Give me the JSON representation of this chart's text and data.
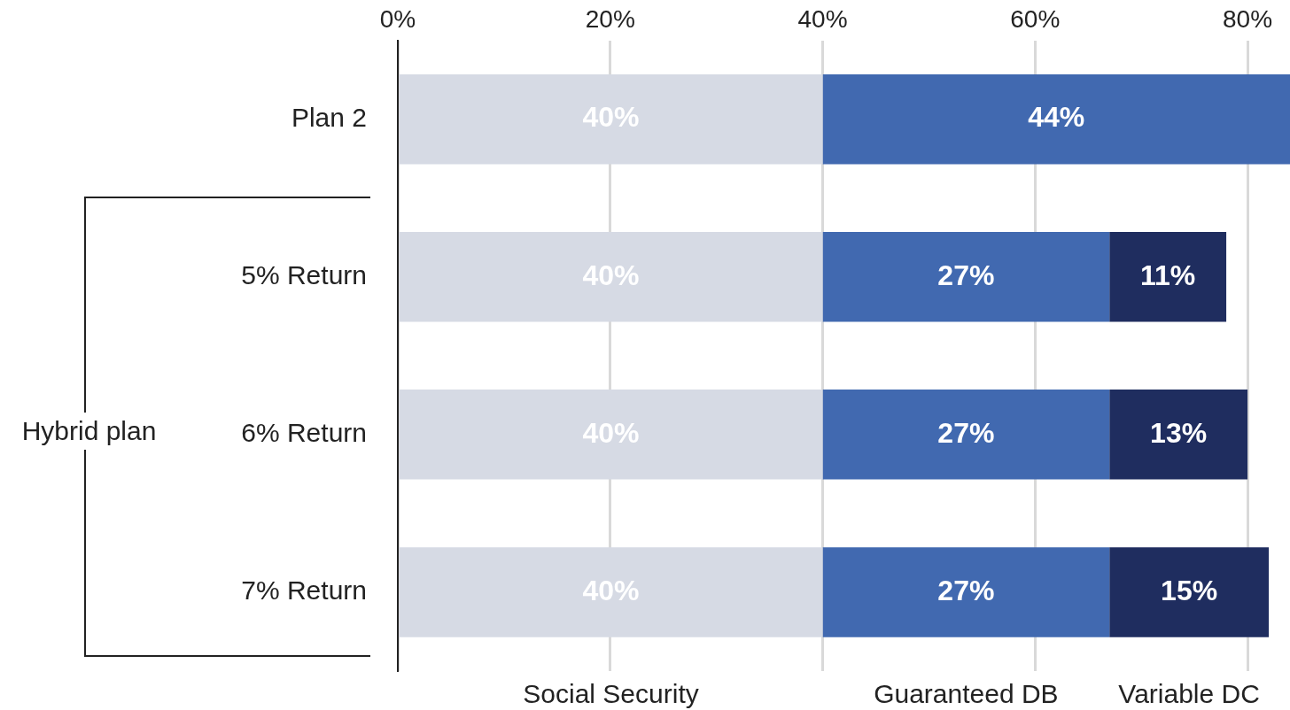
{
  "chart_data": {
    "type": "bar",
    "orientation": "horizontal",
    "stacked": true,
    "categories": [
      "Plan 2",
      "5% Return",
      "6% Return",
      "7% Return"
    ],
    "series": [
      {
        "name": "Social Security",
        "color": "#d6dae4",
        "values": [
          40,
          40,
          40,
          40
        ],
        "value_labels": [
          "40%",
          "40%",
          "40%",
          "40%"
        ]
      },
      {
        "name": "Guaranteed DB",
        "color": "#4169b0",
        "values": [
          44,
          27,
          27,
          27
        ],
        "value_labels": [
          "44%",
          "27%",
          "27%",
          "27%"
        ]
      },
      {
        "name": "Variable DC",
        "color": "#1f2d5f",
        "values": [
          null,
          11,
          13,
          15
        ],
        "value_labels": [
          null,
          "11%",
          "13%",
          "15%"
        ]
      }
    ],
    "xlim": [
      0,
      84
    ],
    "xticks": [
      {
        "value": 0,
        "label": "0%"
      },
      {
        "value": 20,
        "label": "20%"
      },
      {
        "value": 40,
        "label": "40%"
      },
      {
        "value": 60,
        "label": "60%"
      },
      {
        "value": 80,
        "label": "80%"
      }
    ],
    "grid": "x",
    "legend": "bottom",
    "annotations": [
      "Hybrid plan"
    ]
  }
}
